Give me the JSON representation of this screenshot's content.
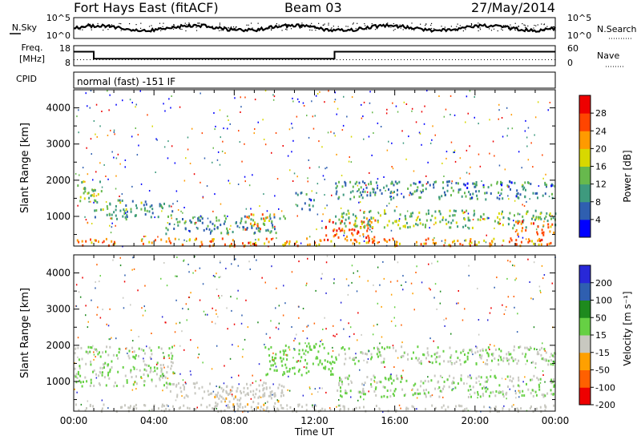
{
  "header": {
    "station": "Fort Hays East (fitACF)",
    "beam": "Beam 03",
    "date": "27/May/2014"
  },
  "chart_data": [
    {
      "type": "line",
      "panel": "noise",
      "left_label": "N.Sky",
      "right_label": "N.Search",
      "left_ticks": [
        "10^5",
        "10^0"
      ],
      "right_ticks": [
        "10^5",
        "10^0"
      ],
      "scale": "log"
    },
    {
      "type": "line",
      "panel": "frequency",
      "left_label": "Freq. [MHz]",
      "right_label": "Nave",
      "left_ticks": [
        "18",
        "8"
      ],
      "right_ticks": [
        "60",
        "0"
      ],
      "series": [
        {
          "name": "Freq.",
          "x": [
            0,
            1,
            1,
            13,
            13,
            24
          ],
          "values": [
            15,
            15,
            11.5,
            11.5,
            15,
            15
          ]
        },
        {
          "name": "Nave",
          "x": [
            0,
            24
          ],
          "values": [
            18,
            18
          ]
        }
      ]
    },
    {
      "type": "heatmap",
      "panel": "cpid",
      "left_label": "CPID",
      "segments": [
        {
          "label": "normal (fast) -151 IF"
        }
      ]
    },
    {
      "type": "heatmap",
      "panel": "power",
      "ylabel": "Slant Range [km]",
      "ylim": [
        180,
        4500
      ],
      "yticks": [
        "4000",
        "3000",
        "2000",
        "1000"
      ],
      "xlim": [
        0,
        24
      ],
      "colorbar": {
        "label": "Power [dB]",
        "ticks": [
          "28",
          "24",
          "20",
          "16",
          "12",
          "8",
          "4"
        ],
        "colors": [
          "#0000ff",
          "#2f5fb0",
          "#3e9a7e",
          "#67b94d",
          "#d8d800",
          "#ff9a00",
          "#ff4500",
          "#ee0000"
        ]
      },
      "scatter_regions": [
        {
          "t0": 0.0,
          "t1": 1.5,
          "r0": 1450,
          "r1": 2000,
          "v": 14
        },
        {
          "t0": 1.0,
          "t1": 5.0,
          "r0": 950,
          "r1": 1500,
          "v": 12
        },
        {
          "t0": 4.5,
          "t1": 10.5,
          "r0": 550,
          "r1": 1050,
          "v": 11
        },
        {
          "t0": 8.5,
          "t1": 10.0,
          "r0": 650,
          "r1": 1100,
          "v": 20
        },
        {
          "t0": 0.0,
          "t1": 24.0,
          "r0": 200,
          "r1": 420,
          "v": 22
        },
        {
          "t0": 11.0,
          "t1": 12.0,
          "r0": 1200,
          "r1": 1700,
          "v": 9
        },
        {
          "t0": 12.5,
          "t1": 15.0,
          "r0": 300,
          "r1": 1000,
          "v": 25
        },
        {
          "t0": 13.0,
          "t1": 24.0,
          "r0": 1500,
          "r1": 2000,
          "v": 10
        },
        {
          "t0": 13.0,
          "t1": 24.0,
          "r0": 700,
          "r1": 1200,
          "v": 14
        },
        {
          "t0": 22.0,
          "t1": 24.0,
          "r0": 500,
          "r1": 900,
          "v": 24
        }
      ]
    },
    {
      "type": "heatmap",
      "panel": "velocity",
      "ylabel": "Slant Range [km]",
      "xlabel": "Time UT",
      "ylim": [
        180,
        4500
      ],
      "yticks": [
        "4000",
        "3000",
        "2000",
        "1000"
      ],
      "xticks": [
        "00:00",
        "04:00",
        "08:00",
        "12:00",
        "16:00",
        "20:00",
        "00:00"
      ],
      "xlim": [
        0,
        24
      ],
      "colorbar": {
        "label": "Velocity [m s⁻¹]",
        "ticks": [
          "200",
          "100",
          "50",
          "15",
          "-15",
          "-50",
          "-100",
          "-200"
        ],
        "colors": [
          "#2828d8",
          "#2f5fb0",
          "#1e8a1e",
          "#66d044",
          "#c8c8c0",
          "#ffa000",
          "#ff6000",
          "#ee0000"
        ]
      },
      "scatter_regions": [
        {
          "t0": 0.0,
          "t1": 5.0,
          "r0": 900,
          "r1": 2000,
          "v": 0
        },
        {
          "t0": 4.5,
          "t1": 10.5,
          "r0": 550,
          "r1": 1000,
          "v": -35
        },
        {
          "t0": 7.0,
          "t1": 10.5,
          "r0": 300,
          "r1": 800,
          "v": -40
        },
        {
          "t0": 9.5,
          "t1": 13.0,
          "r0": 1200,
          "r1": 2100,
          "v": 25
        },
        {
          "t0": 13.0,
          "t1": 24.0,
          "r0": 1500,
          "r1": 2000,
          "v": 0
        },
        {
          "t0": 13.0,
          "t1": 24.0,
          "r0": 600,
          "r1": 1200,
          "v": 0
        },
        {
          "t0": 0.0,
          "t1": 24.0,
          "r0": 200,
          "r1": 400,
          "v": -30
        }
      ]
    }
  ]
}
